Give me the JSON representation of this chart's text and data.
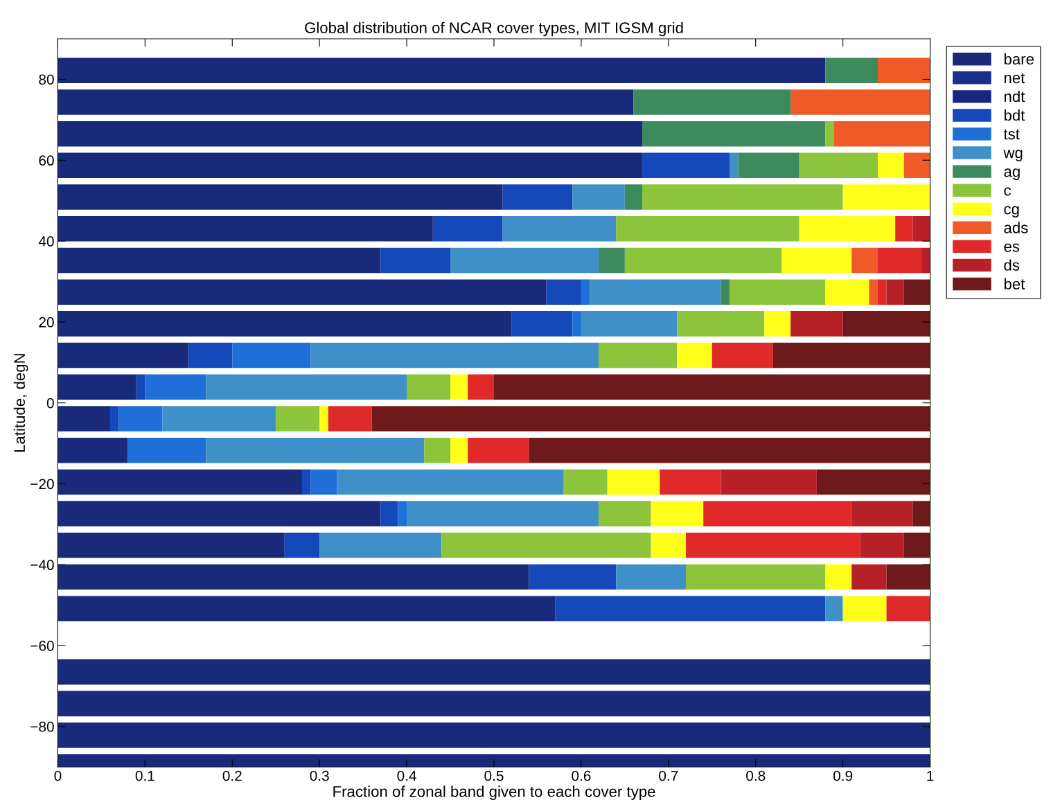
{
  "chart_data": {
    "type": "bar",
    "orientation": "horizontal",
    "stacked": true,
    "title": "Global distribution of NCAR cover types, MIT IGSM grid",
    "xlabel": "Fraction of zonal band given to each cover type",
    "ylabel": "Latitude, degN",
    "x": [
      82.17,
      74.35,
      66.52,
      58.7,
      50.87,
      43.04,
      35.22,
      27.39,
      19.57,
      11.74,
      3.91,
      -3.91,
      -11.74,
      -19.57,
      -27.39,
      -35.22,
      -43.04,
      -50.87,
      -66.52,
      -74.35,
      -82.17,
      -90
    ],
    "series": [
      {
        "name": "bare",
        "color": "#1a2a7a",
        "values": [
          0.88,
          0.66,
          0.67,
          0.67,
          0.51,
          0.43,
          0.37,
          0.56,
          0.52,
          0.15,
          0.09,
          0.06,
          0.08,
          0.28,
          0.37,
          0.26,
          0.54,
          0.57,
          1,
          1,
          1,
          1
        ]
      },
      {
        "name": "net",
        "color": "#1b2f8a",
        "values": [
          0,
          0,
          0,
          0,
          0,
          0,
          0,
          0,
          0,
          0,
          0,
          0,
          0,
          0,
          0,
          0,
          0,
          0,
          0,
          0,
          0,
          0
        ]
      },
      {
        "name": "ndt",
        "color": "#1a2580",
        "values": [
          0,
          0,
          0,
          0,
          0,
          0,
          0,
          0,
          0,
          0,
          0,
          0,
          0,
          0,
          0,
          0,
          0,
          0,
          0,
          0,
          0,
          0
        ]
      },
      {
        "name": "bdt",
        "color": "#1548b8",
        "values": [
          0,
          0,
          0,
          0.1,
          0.08,
          0.08,
          0.08,
          0.04,
          0.07,
          0.05,
          0.01,
          0.01,
          0,
          0.01,
          0.02,
          0.04,
          0.1,
          0.31,
          0,
          0,
          0,
          0
        ]
      },
      {
        "name": "tst",
        "color": "#1f6fd8",
        "values": [
          0,
          0,
          0,
          0,
          0,
          0,
          0,
          0.01,
          0.01,
          0.09,
          0.07,
          0.05,
          0.09,
          0.03,
          0.01,
          0,
          0,
          0,
          0,
          0,
          0,
          0
        ]
      },
      {
        "name": "wg",
        "color": "#3f8fc8",
        "values": [
          0,
          0,
          0,
          0.01,
          0.06,
          0.13,
          0.17,
          0.15,
          0.11,
          0.33,
          0.23,
          0.13,
          0.25,
          0.26,
          0.22,
          0.14,
          0.08,
          0.02,
          0,
          0,
          0,
          0
        ]
      },
      {
        "name": "ag",
        "color": "#3d8a5e",
        "values": [
          0.06,
          0.18,
          0.21,
          0.07,
          0.02,
          0,
          0.03,
          0.01,
          0,
          0,
          0,
          0,
          0,
          0,
          0,
          0,
          0,
          0,
          0,
          0,
          0,
          0
        ]
      },
      {
        "name": "c",
        "color": "#8cc43c",
        "values": [
          0,
          0,
          0.01,
          0.09,
          0.23,
          0.21,
          0.18,
          0.11,
          0.1,
          0.09,
          0.05,
          0.05,
          0.03,
          0.05,
          0.06,
          0.24,
          0.16,
          0,
          0,
          0,
          0,
          0
        ]
      },
      {
        "name": "cg",
        "color": "#ffff1a",
        "values": [
          0,
          0,
          0,
          0.03,
          0.1,
          0.11,
          0.08,
          0.05,
          0.03,
          0.04,
          0.02,
          0.01,
          0.02,
          0.06,
          0.06,
          0.04,
          0.03,
          0.05,
          0,
          0,
          0,
          0
        ]
      },
      {
        "name": "ads",
        "color": "#f05a28",
        "values": [
          0.06,
          0.16,
          0.11,
          0.03,
          0,
          0,
          0.03,
          0.01,
          0,
          0,
          0,
          0,
          0,
          0,
          0,
          0,
          0,
          0,
          0,
          0,
          0,
          0
        ]
      },
      {
        "name": "es",
        "color": "#e02a2a",
        "values": [
          0,
          0,
          0,
          0,
          0,
          0.02,
          0.05,
          0.01,
          0,
          0.07,
          0.03,
          0.05,
          0.07,
          0.07,
          0.17,
          0.2,
          0,
          0.05,
          0,
          0,
          0,
          0
        ]
      },
      {
        "name": "ds",
        "color": "#b82028",
        "values": [
          0,
          0,
          0,
          0,
          0,
          0.02,
          0.01,
          0.02,
          0.06,
          0,
          0,
          0,
          0,
          0.11,
          0.07,
          0.05,
          0.04,
          0,
          0,
          0,
          0,
          0
        ]
      },
      {
        "name": "bet",
        "color": "#6e1a1a",
        "values": [
          0,
          0,
          0,
          0,
          0,
          0,
          0,
          0.03,
          0.1,
          0.18,
          0.5,
          0.64,
          0.46,
          0.13,
          0.02,
          0.03,
          0.05,
          0,
          0,
          0,
          0,
          0
        ]
      }
    ],
    "xlim": [
      0,
      1
    ],
    "xticks": [
      0,
      0.1,
      0.2,
      0.3,
      0.4,
      0.5,
      0.6,
      0.7,
      0.8,
      0.9,
      1
    ],
    "ylim": [
      -90,
      90
    ],
    "yticks": [
      -80,
      -60,
      -40,
      -20,
      0,
      20,
      40,
      60,
      80
    ],
    "grid": false,
    "legend": "right"
  }
}
